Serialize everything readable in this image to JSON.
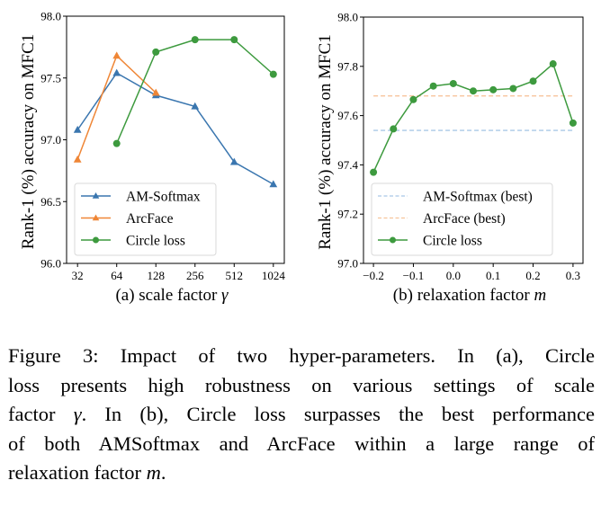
{
  "chart_data": [
    {
      "type": "line",
      "panel": "a",
      "xlabel": "(a) scale factor γ",
      "xlabel_prefix": "(a) scale factor ",
      "xlabel_symbol": "γ",
      "ylabel": "Rank-1 (%) accuracy on MFC1",
      "x_scale": "log2",
      "x_ticks": [
        32,
        64,
        128,
        256,
        512,
        1024
      ],
      "x_tick_labels": [
        "32",
        "64",
        "128",
        "256",
        "512",
        "1024"
      ],
      "ylim": [
        96.0,
        98.0
      ],
      "y_ticks": [
        96.0,
        96.5,
        97.0,
        97.5,
        98.0
      ],
      "y_tick_labels": [
        "96.0",
        "96.5",
        "97.0",
        "97.5",
        "98.0"
      ],
      "grid": false,
      "legend_position": "lower-left",
      "series": [
        {
          "name": "AM-Softmax",
          "color": "#3a76af",
          "marker": "triangle",
          "x": [
            32,
            64,
            128,
            256,
            512,
            1024
          ],
          "values": [
            97.08,
            97.54,
            97.36,
            97.27,
            96.82,
            96.64
          ]
        },
        {
          "name": "ArcFace",
          "color": "#ef8636",
          "marker": "triangle",
          "x": [
            32,
            64,
            128
          ],
          "values": [
            96.84,
            97.68,
            97.38
          ]
        },
        {
          "name": "Circle loss",
          "color": "#3d9a3e",
          "marker": "circle",
          "x": [
            64,
            128,
            256,
            512,
            1024
          ],
          "values": [
            96.97,
            97.71,
            97.81,
            97.81,
            97.53
          ]
        }
      ]
    },
    {
      "type": "line",
      "panel": "b",
      "xlabel": "(b) relaxation factor m",
      "xlabel_prefix": "(b) relaxation factor ",
      "xlabel_symbol": "m",
      "ylabel": "Rank-1 (%) accuracy on MFC1",
      "xlim": [
        -0.225,
        0.325
      ],
      "x_ticks": [
        -0.2,
        -0.1,
        0.0,
        0.1,
        0.2,
        0.3
      ],
      "x_tick_labels": [
        "−0.2",
        "−0.1",
        "0.0",
        "0.1",
        "0.2",
        "0.3"
      ],
      "ylim": [
        97.0,
        98.0
      ],
      "y_ticks": [
        97.0,
        97.2,
        97.4,
        97.6,
        97.8,
        98.0
      ],
      "y_tick_labels": [
        "97.0",
        "97.2",
        "97.4",
        "97.6",
        "97.8",
        "98.0"
      ],
      "grid": false,
      "legend_position": "lower-left",
      "series": [
        {
          "name": "AM-Softmax (best)",
          "color": "#a9c8e6",
          "style": "dashed",
          "x": [
            -0.2,
            0.3
          ],
          "values": [
            97.54,
            97.54
          ]
        },
        {
          "name": "ArcFace (best)",
          "color": "#f7c49c",
          "style": "dashed",
          "x": [
            -0.2,
            0.3
          ],
          "values": [
            97.68,
            97.68
          ]
        },
        {
          "name": "Circle loss",
          "color": "#3d9a3e",
          "marker": "circle",
          "x": [
            -0.2,
            -0.15,
            -0.1,
            -0.05,
            0.0,
            0.05,
            0.1,
            0.15,
            0.2,
            0.25,
            0.3
          ],
          "values": [
            97.37,
            97.546,
            97.665,
            97.72,
            97.73,
            97.7,
            97.705,
            97.71,
            97.74,
            97.81,
            97.57
          ]
        }
      ]
    }
  ],
  "caption": {
    "lines": [
      "Figure 3: Impact of two hyper-parameters. In (a), Circle",
      "loss presents high robustness on various settings of scale",
      "factor γ. In (b), Circle loss surpasses the best performance",
      "of both AMSoftmax and ArcFace within a large range of",
      "relaxation factor m."
    ],
    "line3_before": "factor ",
    "line3_symbol": "γ",
    "line3_after": ". In (b), Circle loss surpasses the best performance",
    "line5_before": "relaxation factor ",
    "line5_symbol": "m",
    "line5_after": "."
  }
}
